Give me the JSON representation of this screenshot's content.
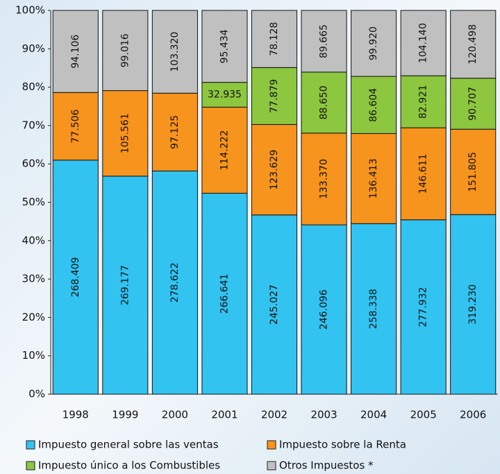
{
  "chart_data": {
    "type": "bar",
    "stacking": "percent",
    "categories": [
      "1998",
      "1999",
      "2000",
      "2001",
      "2002",
      "2003",
      "2004",
      "2005",
      "2006"
    ],
    "series": [
      {
        "name": "Impuesto general sobre las ventas",
        "color": "#33c3f0",
        "values": [
          268.409,
          269.177,
          278.622,
          266.641,
          245.027,
          246.096,
          258.338,
          277.932,
          319.23
        ],
        "value_labels": [
          "268.409",
          "269.177",
          "278.622",
          "266.641",
          "245.027",
          "246.096",
          "258.338",
          "277.932",
          "319.230"
        ]
      },
      {
        "name": "Impuesto sobre la Renta",
        "color": "#f7941d",
        "values": [
          77.506,
          105.561,
          97.125,
          114.222,
          123.629,
          133.37,
          136.413,
          146.611,
          151.805
        ],
        "value_labels": [
          "77.506",
          "105.561",
          "97.125",
          "114.222",
          "123.629",
          "133.370",
          "136.413",
          "146.611",
          "151.805"
        ]
      },
      {
        "name": "Impuesto único a los Combustibles",
        "color": "#8dc63f",
        "values": [
          null,
          null,
          null,
          32.935,
          77.879,
          88.65,
          86.604,
          82.921,
          90.707
        ],
        "value_labels": [
          null,
          null,
          null,
          "32.935",
          "77.879",
          "88.650",
          "86.604",
          "82.921",
          "90.707"
        ]
      },
      {
        "name": "Otros Impuestos *",
        "color": "#c0c0c0",
        "values": [
          94.106,
          99.016,
          103.32,
          95.434,
          78.128,
          89.665,
          99.92,
          104.14,
          120.498
        ],
        "value_labels": [
          "94.106",
          "99.016",
          "103.320",
          "95.434",
          "78.128",
          "89.665",
          "99.920",
          "104.140",
          "120.498"
        ]
      }
    ],
    "ylim": [
      0,
      100
    ],
    "yticks": [
      {
        "value": 0,
        "label": "0%"
      },
      {
        "value": 10,
        "label": "10%"
      },
      {
        "value": 20,
        "label": "20%"
      },
      {
        "value": 30,
        "label": "30%"
      },
      {
        "value": 40,
        "label": "40%"
      },
      {
        "value": 50,
        "label": "50%"
      },
      {
        "value": 60,
        "label": "60%"
      },
      {
        "value": 70,
        "label": "70%"
      },
      {
        "value": 80,
        "label": "80%"
      },
      {
        "value": 90,
        "label": "90%"
      },
      {
        "value": 100,
        "label": "100%"
      }
    ],
    "legend": "bottom"
  }
}
